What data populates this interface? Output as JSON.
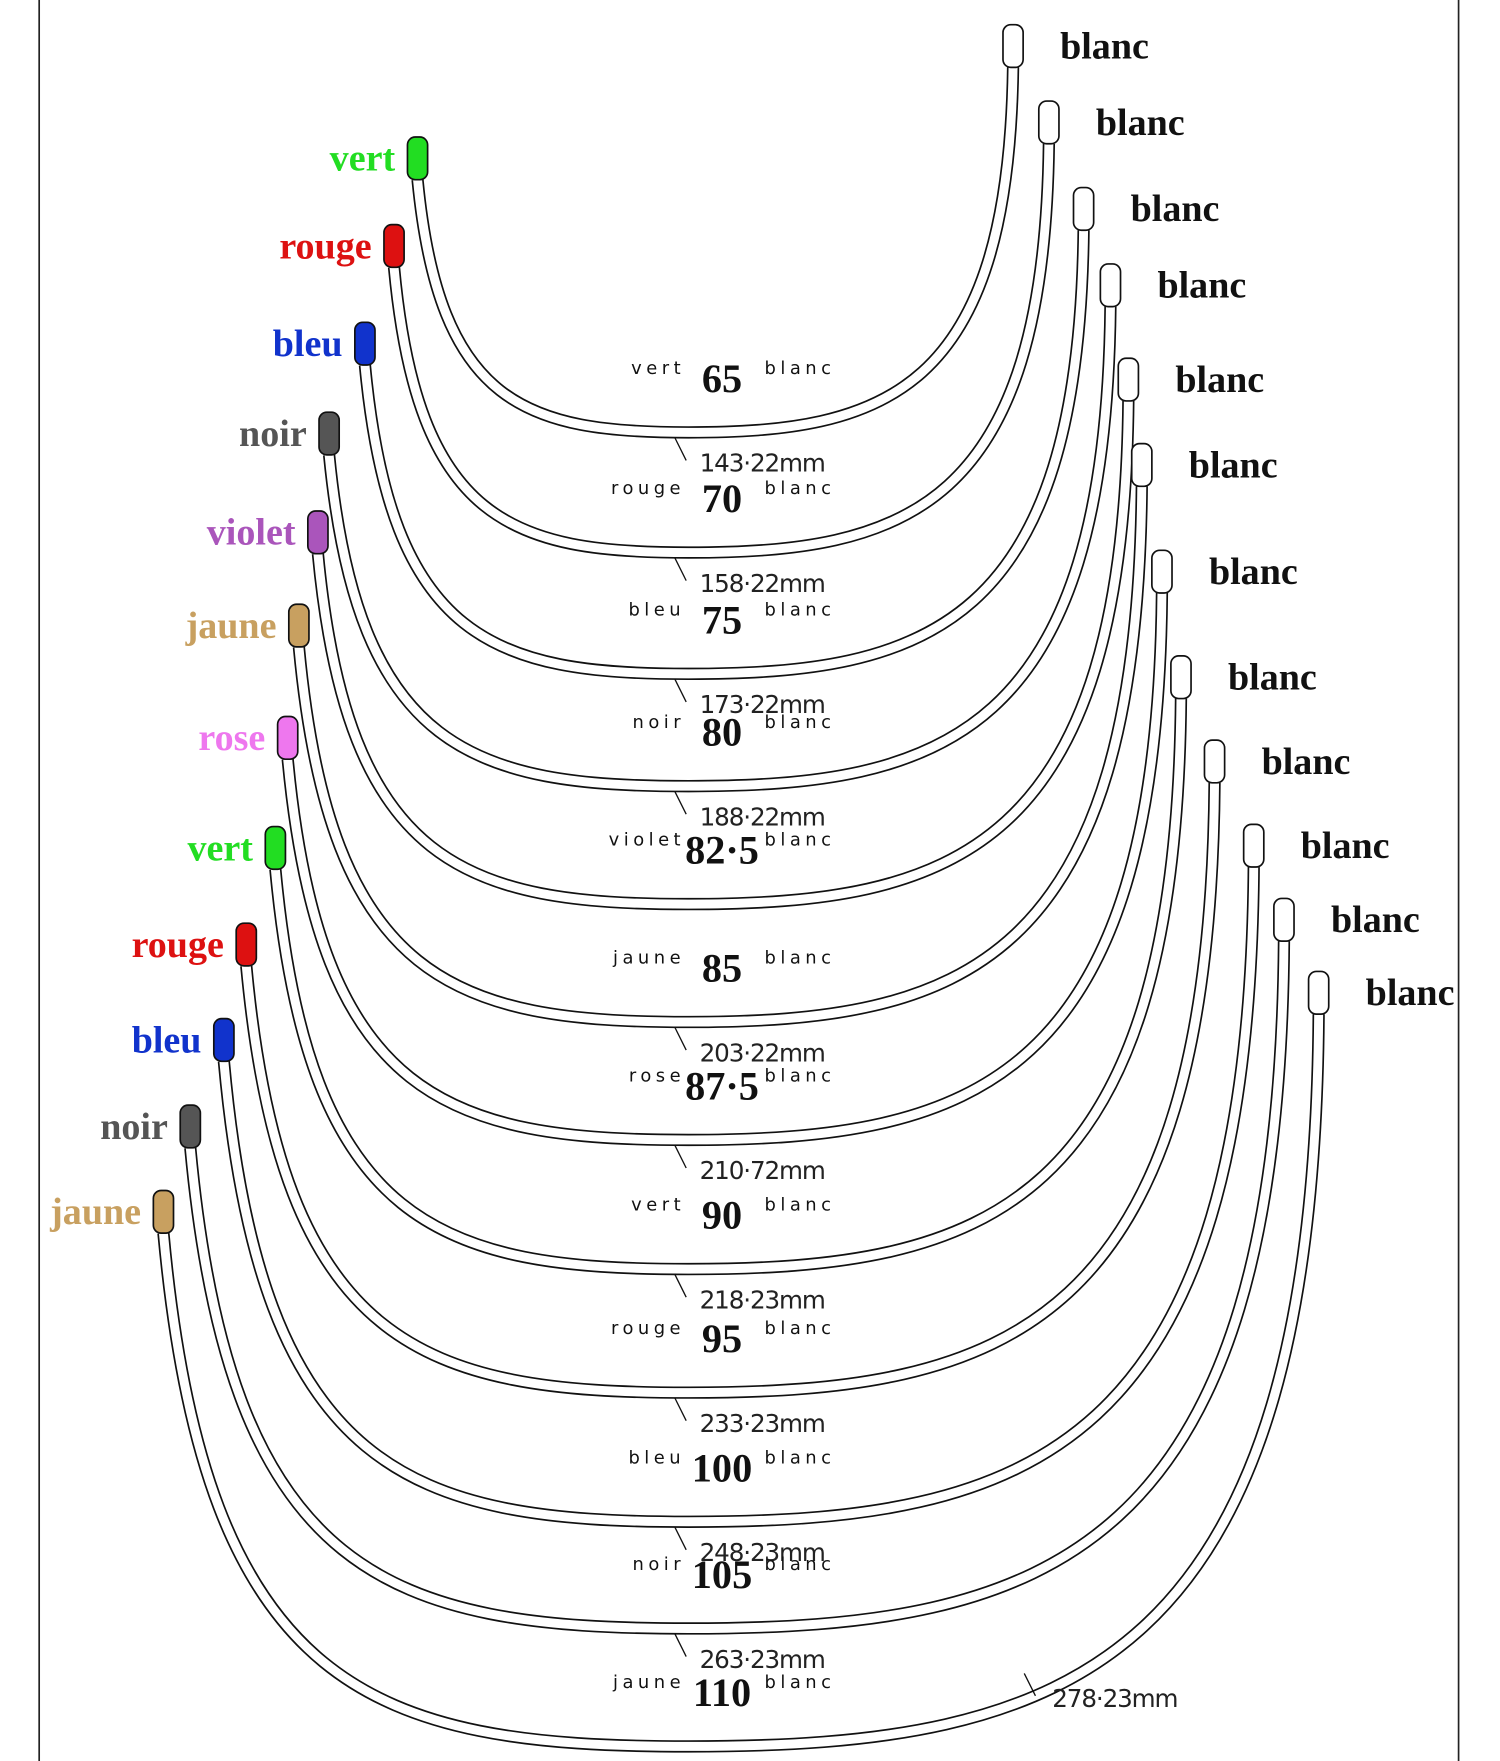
{
  "wires": [
    {
      "left": "vert",
      "color": "#22dd22",
      "size": "65",
      "right": "blanc",
      "length": "143·22mm"
    },
    {
      "left": "rouge",
      "color": "#dd1111",
      "size": "70",
      "right": "blanc",
      "length": "158·22mm"
    },
    {
      "left": "bleu",
      "color": "#1133cc",
      "size": "75",
      "right": "blanc",
      "length": "173·22mm"
    },
    {
      "left": "noir",
      "color": "#555555",
      "size": "80",
      "right": "blanc",
      "length": "188·22mm"
    },
    {
      "left": "violet",
      "color": "#aa55bb",
      "size": "82·5",
      "right": "blanc"
    },
    {
      "left": "jaune",
      "color": "#c8a060",
      "size": "85",
      "right": "blanc",
      "length": "203·22mm"
    },
    {
      "left": "rose",
      "color": "#ee77ee",
      "size": "87·5",
      "right": "blanc",
      "length": "210·72mm"
    },
    {
      "left": "vert",
      "color": "#22dd22",
      "size": "90",
      "right": "blanc",
      "length": "218·23mm"
    },
    {
      "left": "rouge",
      "color": "#dd1111",
      "size": "95",
      "right": "blanc",
      "length": "233·23mm"
    },
    {
      "left": "bleu",
      "color": "#1133cc",
      "size": "100",
      "right": "blanc",
      "length": "248·23mm"
    },
    {
      "left": "noir",
      "color": "#555555",
      "size": "105",
      "right": "blanc",
      "length": "263·23mm"
    },
    {
      "left": "jaune",
      "color": "#c8a060",
      "size": "110",
      "right": "blanc",
      "length": "278·23mm"
    }
  ]
}
